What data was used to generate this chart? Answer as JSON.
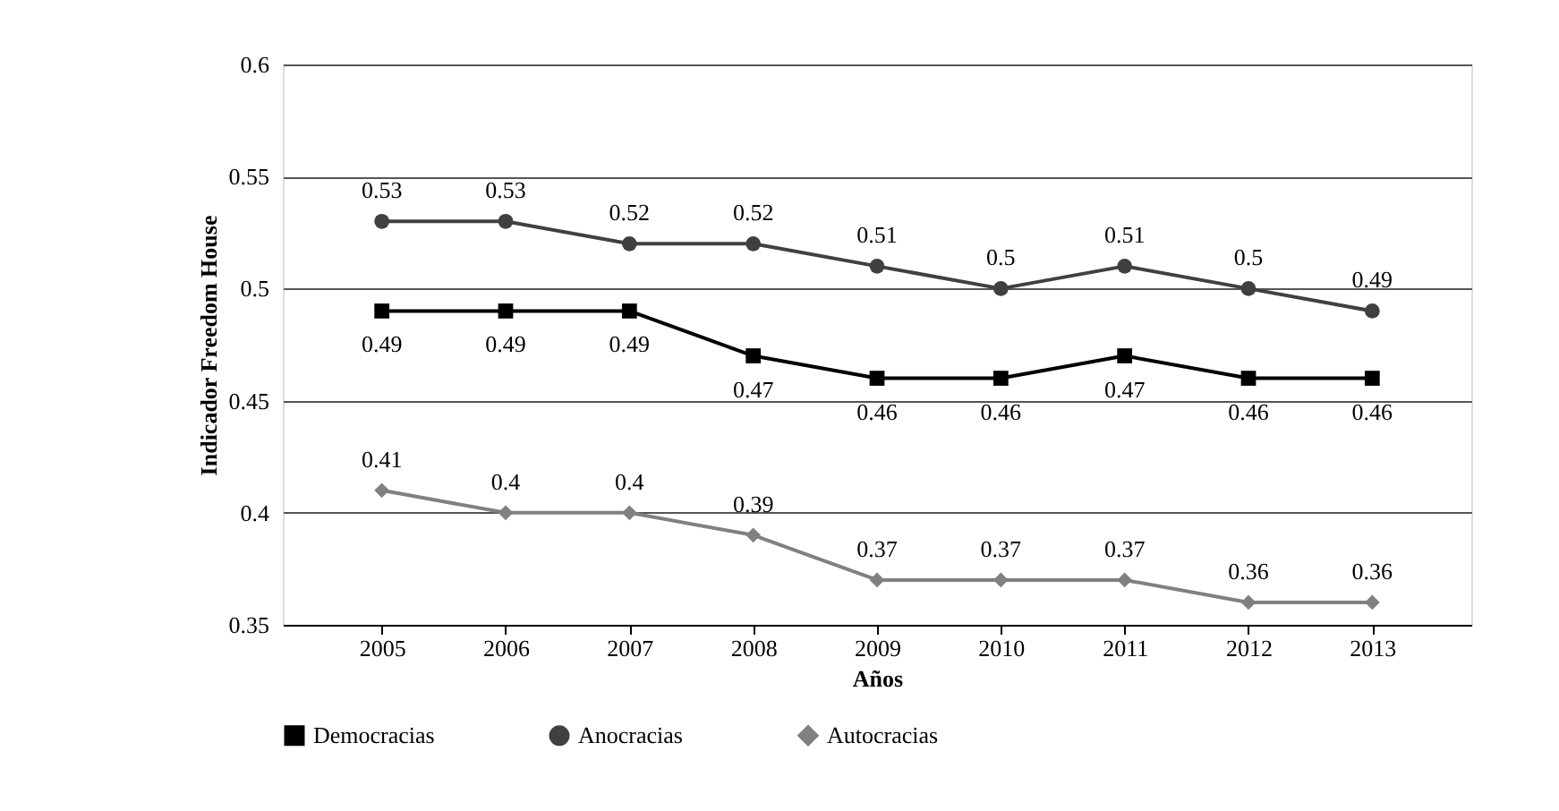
{
  "chart_data": {
    "type": "line",
    "xlabel": "Años",
    "ylabel": "Indicador Freedom House",
    "categories": [
      "2005",
      "2006",
      "2007",
      "2008",
      "2009",
      "2010",
      "2011",
      "2012",
      "2013"
    ],
    "series": [
      {
        "name": "Democracias",
        "color": "#000000",
        "marker": "square",
        "values": [
          0.49,
          0.49,
          0.49,
          0.47,
          0.46,
          0.46,
          0.47,
          0.46,
          0.46
        ]
      },
      {
        "name": "Anocracias",
        "color": "#404040",
        "marker": "circle",
        "values": [
          0.53,
          0.53,
          0.52,
          0.52,
          0.51,
          0.5,
          0.51,
          0.5,
          0.49
        ]
      },
      {
        "name": "Autocracias",
        "color": "#808080",
        "marker": "diamond",
        "values": [
          0.41,
          0.4,
          0.4,
          0.39,
          0.37,
          0.37,
          0.37,
          0.36,
          0.36
        ]
      }
    ],
    "ylim": [
      0.35,
      0.6
    ],
    "yticks": [
      0.35,
      0.4,
      0.45,
      0.5,
      0.55,
      0.6
    ],
    "grid": "y",
    "legend": "bottom",
    "data_labels": true,
    "line_style": "solid"
  }
}
